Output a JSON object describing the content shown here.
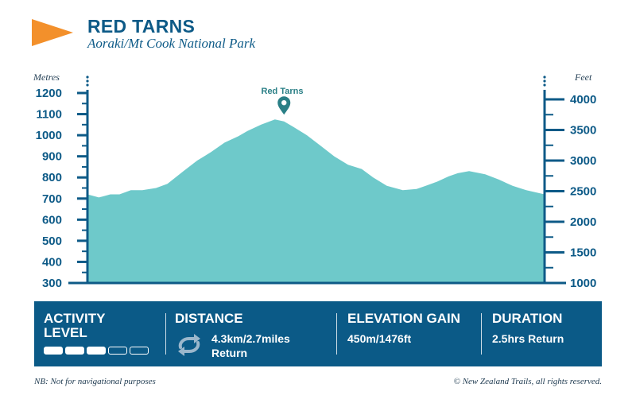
{
  "header": {
    "title": "RED TARNS",
    "subtitle": "Aoraki/Mt Cook National Park"
  },
  "chart_data": {
    "type": "area",
    "left_axis_label": "Metres",
    "right_axis_label": "Feet",
    "left_ticks": [
      300,
      400,
      500,
      600,
      700,
      800,
      900,
      1000,
      1100,
      1200
    ],
    "right_ticks": [
      1000,
      1500,
      2000,
      2500,
      3000,
      3500,
      4000
    ],
    "ylim_metres": [
      300,
      1250
    ],
    "x": [
      0,
      0.025,
      0.05,
      0.07,
      0.095,
      0.12,
      0.15,
      0.175,
      0.21,
      0.24,
      0.27,
      0.3,
      0.33,
      0.35,
      0.38,
      0.41,
      0.43,
      0.45,
      0.48,
      0.51,
      0.54,
      0.57,
      0.6,
      0.625,
      0.655,
      0.69,
      0.72,
      0.74,
      0.765,
      0.79,
      0.81,
      0.835,
      0.87,
      0.9,
      0.93,
      0.96,
      1.0
    ],
    "y": [
      720,
      705,
      720,
      720,
      740,
      740,
      750,
      770,
      830,
      880,
      920,
      965,
      995,
      1020,
      1050,
      1075,
      1065,
      1040,
      1000,
      950,
      900,
      860,
      840,
      800,
      760,
      740,
      745,
      760,
      780,
      805,
      820,
      830,
      815,
      790,
      760,
      740,
      720
    ],
    "annotation": {
      "label": "Red Tarns",
      "x": 0.43,
      "y": 1075
    },
    "fill_color": "#6ec9ca",
    "axis_color": "#0d5a87"
  },
  "panel": {
    "activity": {
      "title_line1": "ACTIVITY",
      "title_line2": "LEVEL",
      "level_filled": 3,
      "level_total": 5
    },
    "distance": {
      "title": "DISTANCE",
      "value_line1": "4.3km/2.7miles",
      "value_line2": "Return",
      "icon": "loop-arrows-icon"
    },
    "elevation": {
      "title": "ELEVATION GAIN",
      "value": "450m/1476ft"
    },
    "duration": {
      "title": "DURATION",
      "value": "2.5hrs Return"
    },
    "bg_color": "#0b5a87"
  },
  "footer": {
    "note": "NB: Not for navigational purposes",
    "copyright": "© New Zealand Trails, all rights reserved."
  }
}
